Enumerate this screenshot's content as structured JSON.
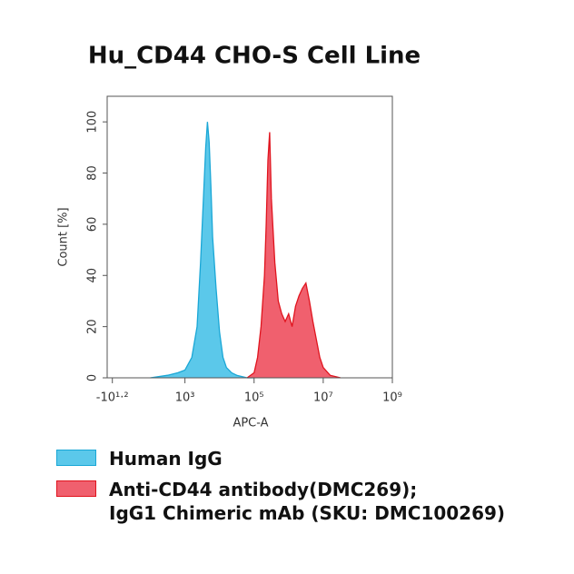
{
  "chart_data": {
    "type": "area",
    "title": "Hu_CD44 CHO-S Cell Line",
    "x_label": "APC-A",
    "y_label": "Count [%]",
    "xlim": [
      0.75,
      9
    ],
    "xticks": [
      {
        "value": 0.9,
        "label": "-10¹·²"
      },
      {
        "value": 3,
        "label": "10³"
      },
      {
        "value": 5,
        "label": "10⁵"
      },
      {
        "value": 7,
        "label": "10⁷"
      },
      {
        "value": 9,
        "label": "10⁹"
      }
    ],
    "ylim": [
      0,
      110
    ],
    "yticks": [
      0,
      20,
      40,
      60,
      80,
      100
    ],
    "series": [
      {
        "name": "Human IgG",
        "color": "#5bc8ea",
        "edge": "#1aa7d6",
        "x": [
          2.0,
          2.5,
          2.8,
          3.0,
          3.2,
          3.35,
          3.45,
          3.55,
          3.6,
          3.65,
          3.7,
          3.75,
          3.8,
          3.9,
          4.0,
          4.1,
          4.2,
          4.35,
          4.5,
          4.8,
          5.0
        ],
        "values": [
          0,
          1,
          2,
          3,
          8,
          20,
          45,
          75,
          90,
          100,
          92,
          75,
          55,
          35,
          18,
          8,
          4,
          2,
          1,
          0,
          0
        ]
      },
      {
        "name": "Anti-CD44 antibody(DMC269);\nIgG1 Chimeric mAb (SKU: DMC100269)",
        "color": "#f0606e",
        "edge": "#e0141e",
        "x": [
          4.8,
          5.0,
          5.1,
          5.2,
          5.3,
          5.35,
          5.4,
          5.45,
          5.5,
          5.6,
          5.7,
          5.8,
          5.9,
          6.0,
          6.1,
          6.2,
          6.3,
          6.4,
          6.5,
          6.6,
          6.7,
          6.8,
          6.9,
          7.0,
          7.2,
          7.5
        ],
        "values": [
          0,
          2,
          8,
          20,
          40,
          60,
          85,
          96,
          70,
          45,
          30,
          25,
          22,
          25,
          20,
          28,
          32,
          35,
          37,
          30,
          22,
          15,
          8,
          4,
          1,
          0
        ]
      }
    ]
  }
}
